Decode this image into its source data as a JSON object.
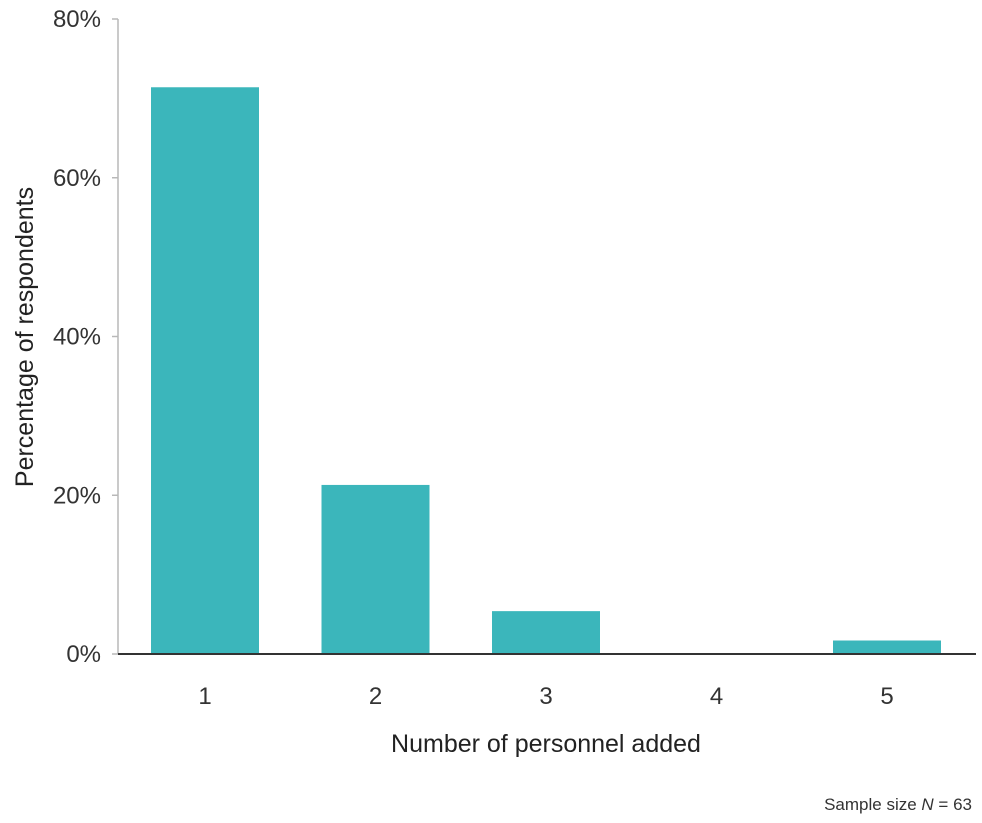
{
  "chart_data": {
    "type": "bar",
    "categories": [
      "1",
      "2",
      "3",
      "4",
      "5"
    ],
    "values": [
      71.4,
      21.3,
      5.4,
      0,
      1.7
    ],
    "xlabel": "Number of personnel added",
    "ylabel": "Percentage of respondents",
    "ylim": [
      0,
      80
    ],
    "yticks": [
      0,
      20,
      40,
      60,
      80
    ],
    "ytick_labels": [
      "0%",
      "20%",
      "40%",
      "60%",
      "80%"
    ],
    "bar_color": "#3bb6bb",
    "grid": false,
    "legend": "none"
  },
  "note": {
    "prefix": "Sample size ",
    "italic": "N",
    "suffix": " = 63"
  }
}
